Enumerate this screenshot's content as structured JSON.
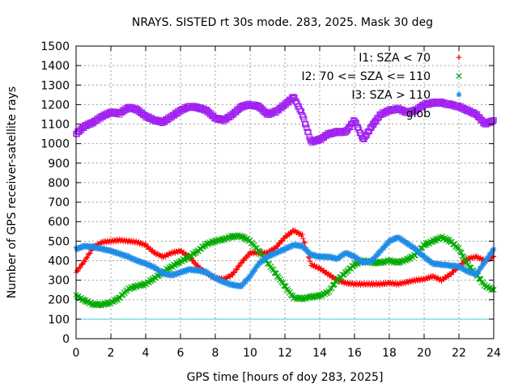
{
  "chart_data": {
    "type": "scatter",
    "title": "NRAYS. SISTED rt 30s mode. 283, 2025. Mask 30 deg",
    "xlabel": "GPS time [hours of doy 283, 2025]",
    "ylabel": "Number of GPS receiver-satellite rays",
    "xlim": [
      0,
      24
    ],
    "ylim": [
      0,
      1500
    ],
    "xticks": [
      0,
      2,
      4,
      6,
      8,
      10,
      12,
      14,
      16,
      18,
      20,
      22,
      24
    ],
    "yticks": [
      0,
      100,
      200,
      300,
      400,
      500,
      600,
      700,
      800,
      900,
      1000,
      1100,
      1200,
      1300,
      1400,
      1500
    ],
    "grid": true,
    "legend_position": "top-right",
    "threshold_line": {
      "y": 100,
      "color": "#40d0e0"
    },
    "series": [
      {
        "name": "I1: SZA < 70",
        "color": "#ff0000",
        "marker": "plus",
        "x": [
          0,
          0.5,
          1,
          1.5,
          2,
          2.5,
          3,
          3.5,
          4,
          4.5,
          5,
          5.5,
          6,
          6.5,
          7,
          7.5,
          8,
          8.5,
          9,
          9.5,
          10,
          10.5,
          11,
          11.5,
          12,
          12.5,
          13,
          13.5,
          14,
          14.5,
          15,
          15.5,
          16,
          16.5,
          17,
          17.5,
          18,
          18.5,
          19,
          19.5,
          20,
          20.5,
          21,
          21.5,
          22,
          22.5,
          23,
          23.5,
          24
        ],
        "y": [
          340,
          400,
          470,
          495,
          500,
          505,
          500,
          495,
          480,
          440,
          420,
          440,
          450,
          420,
          370,
          335,
          310,
          305,
          330,
          390,
          440,
          440,
          440,
          470,
          520,
          555,
          530,
          380,
          360,
          330,
          300,
          285,
          280,
          280,
          280,
          280,
          285,
          280,
          290,
          300,
          305,
          320,
          300,
          330,
          370,
          410,
          420,
          400,
          420
        ]
      },
      {
        "name": "I2: 70 <= SZA <= 110",
        "color": "#00aa00",
        "marker": "cross",
        "x": [
          0,
          0.5,
          1,
          1.5,
          2,
          2.5,
          3,
          3.5,
          4,
          4.5,
          5,
          5.5,
          6,
          6.5,
          7,
          7.5,
          8,
          8.5,
          9,
          9.5,
          10,
          10.5,
          11,
          11.5,
          12,
          12.5,
          13,
          13.5,
          14,
          14.5,
          15,
          15.5,
          16,
          16.5,
          17,
          17.5,
          18,
          18.5,
          19,
          19.5,
          20,
          20.5,
          21,
          21.5,
          22,
          22.5,
          23,
          23.5,
          24
        ],
        "y": [
          220,
          195,
          175,
          175,
          185,
          210,
          255,
          270,
          280,
          310,
          340,
          370,
          395,
          420,
          450,
          485,
          500,
          510,
          525,
          525,
          500,
          450,
          390,
          330,
          270,
          210,
          205,
          215,
          220,
          240,
          300,
          340,
          380,
          400,
          390,
          390,
          400,
          390,
          405,
          430,
          480,
          500,
          520,
          500,
          460,
          380,
          330,
          270,
          250
        ]
      },
      {
        "name": "I3: SZA > 110",
        "color": "#1e8ce6",
        "marker": "star",
        "x": [
          0,
          0.5,
          1,
          1.5,
          2,
          2.5,
          3,
          3.5,
          4,
          4.5,
          5,
          5.5,
          6,
          6.5,
          7,
          7.5,
          8,
          8.5,
          9,
          9.5,
          10,
          10.5,
          11,
          11.5,
          12,
          12.5,
          13,
          13.5,
          14,
          14.5,
          15,
          15.5,
          16,
          16.5,
          17,
          17.5,
          18,
          18.5,
          19,
          19.5,
          20,
          20.5,
          21,
          21.5,
          22,
          22.5,
          23,
          23.5,
          24
        ],
        "y": [
          460,
          475,
          470,
          460,
          450,
          435,
          420,
          400,
          385,
          365,
          335,
          325,
          340,
          355,
          350,
          340,
          310,
          290,
          275,
          270,
          320,
          385,
          420,
          440,
          460,
          480,
          475,
          430,
          420,
          420,
          410,
          440,
          420,
          390,
          400,
          450,
          500,
          520,
          490,
          460,
          420,
          385,
          380,
          375,
          370,
          345,
          330,
          395,
          460
        ]
      },
      {
        "name": "glob",
        "color": "#a020f0",
        "marker": "square",
        "x": [
          0,
          0.5,
          1,
          1.5,
          2,
          2.5,
          3,
          3.5,
          4,
          4.5,
          5,
          5.5,
          6,
          6.5,
          7,
          7.5,
          8,
          8.5,
          9,
          9.5,
          10,
          10.5,
          11,
          11.5,
          12,
          12.5,
          13,
          13.5,
          14,
          14.5,
          15,
          15.5,
          16,
          16.5,
          17,
          17.5,
          18,
          18.5,
          19,
          19.5,
          20,
          20.5,
          21,
          21.5,
          22,
          22.5,
          23,
          23.5,
          24
        ],
        "y": [
          1050,
          1090,
          1110,
          1140,
          1160,
          1155,
          1185,
          1175,
          1140,
          1120,
          1110,
          1140,
          1170,
          1190,
          1185,
          1170,
          1130,
          1120,
          1150,
          1190,
          1200,
          1190,
          1150,
          1165,
          1200,
          1240,
          1150,
          1010,
          1020,
          1050,
          1060,
          1060,
          1120,
          1020,
          1090,
          1150,
          1170,
          1180,
          1160,
          1170,
          1200,
          1210,
          1210,
          1200,
          1190,
          1170,
          1150,
          1100,
          1120
        ]
      }
    ]
  }
}
